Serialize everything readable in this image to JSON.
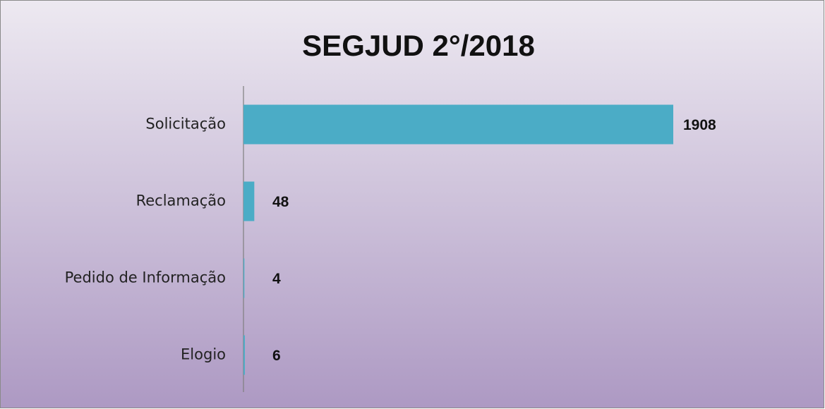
{
  "chart_data": {
    "type": "bar",
    "orientation": "horizontal",
    "title": "SEGJUD 2°/2018",
    "categories": [
      "Solicitação",
      "Reclamação",
      "Pedido de Informação",
      "Elogio"
    ],
    "values": [
      1908,
      48,
      4,
      6
    ],
    "color": "#4bacc6"
  }
}
